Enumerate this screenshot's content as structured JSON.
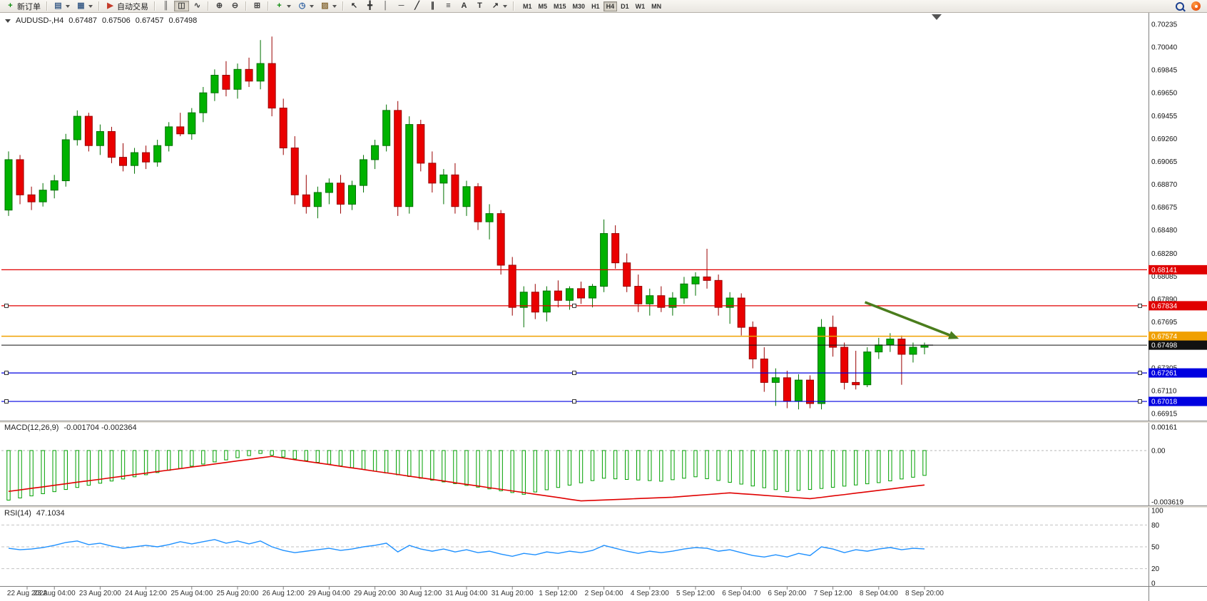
{
  "toolbar": {
    "new_order_label": "新订单",
    "autotrading_label": "自动交易",
    "timeframes": [
      "M1",
      "M5",
      "M15",
      "M30",
      "H1",
      "H4",
      "D1",
      "W1",
      "MN"
    ],
    "active_timeframe": "H4",
    "icons": {
      "new-order-icon": {
        "glyph": "+",
        "color": "#0a8a0a"
      },
      "new-chart-icon": {
        "glyph": "▤",
        "color": "#41628b"
      },
      "profiles-icon": {
        "glyph": "▦",
        "color": "#41628b"
      },
      "autotrading-icon": {
        "glyph": "▶",
        "color": "#c43b2a"
      },
      "bars-chart-icon": {
        "glyph": "║",
        "color": "#444444"
      },
      "candles-chart-icon": {
        "glyph": "◫",
        "color": "#444444"
      },
      "line-chart-icon": {
        "glyph": "∿",
        "color": "#444444"
      },
      "zoom-in-icon": {
        "glyph": "⊕",
        "color": "#444444"
      },
      "zoom-out-icon": {
        "glyph": "⊖",
        "color": "#444444"
      },
      "tile-windows-icon": {
        "glyph": "⊞",
        "color": "#444444"
      },
      "indicators-icon": {
        "glyph": "+",
        "color": "#0a8a0a"
      },
      "periods-icon": {
        "glyph": "◷",
        "color": "#2a5d9f"
      },
      "templates-icon": {
        "glyph": "▨",
        "color": "#8a6d3b"
      },
      "cursor-icon": {
        "glyph": "↖",
        "color": "#333333"
      },
      "crosshair-icon": {
        "glyph": "╋",
        "color": "#333333"
      },
      "vertical-line-icon": {
        "glyph": "│",
        "color": "#333333"
      },
      "horizontal-line-icon": {
        "glyph": "─",
        "color": "#333333"
      },
      "trendline-icon": {
        "glyph": "╱",
        "color": "#333333"
      },
      "channel-icon": {
        "glyph": "∥",
        "color": "#333333"
      },
      "fibonacci-icon": {
        "glyph": "≡",
        "color": "#333333"
      },
      "text-icon": {
        "glyph": "A",
        "color": "#333333"
      },
      "label-icon": {
        "glyph": "T",
        "color": "#333333"
      },
      "arrows-icon": {
        "glyph": "↗",
        "color": "#333333"
      }
    }
  },
  "chart_data": {
    "type": "candlestick",
    "symbol_title": "AUDUSD-,H4",
    "symbol": "AUDUSD-",
    "period": "H4",
    "current_bar": {
      "open": "0.67487",
      "high": "0.67506",
      "low": "0.67457",
      "close": "0.67498"
    },
    "price_axis": {
      "max_price": 0.70235,
      "min_price": 0.66915,
      "tick_labels": [
        "0.70235",
        "0.70040",
        "0.69845",
        "0.69650",
        "0.69455",
        "0.69260",
        "0.69065",
        "0.68870",
        "0.68675",
        "0.68480",
        "0.68280",
        "0.68085",
        "0.67890",
        "0.67695",
        "0.67305",
        "0.67110",
        "0.66915"
      ]
    },
    "time_labels": [
      "22 Aug 2022",
      "23 Aug 04:00",
      "23 Aug 20:00",
      "24 Aug 12:00",
      "25 Aug 04:00",
      "25 Aug 20:00",
      "26 Aug 12:00",
      "29 Aug 04:00",
      "29 Aug 20:00",
      "30 Aug 12:00",
      "31 Aug 04:00",
      "31 Aug 20:00",
      "1 Sep 12:00",
      "2 Sep 04:00",
      "4 Sep 23:00",
      "5 Sep 12:00",
      "6 Sep 04:00",
      "6 Sep 20:00",
      "7 Sep 12:00",
      "8 Sep 04:00",
      "8 Sep 20:00"
    ],
    "candles_per_label": 4,
    "colors": {
      "bull_fill": "#00B200",
      "bull_border": "#007000",
      "bear_fill": "#EA0000",
      "bear_border": "#990000"
    },
    "candles": [
      [
        0.6865,
        0.6915,
        0.686,
        0.6908
      ],
      [
        0.6908,
        0.6912,
        0.687,
        0.6878
      ],
      [
        0.6878,
        0.6885,
        0.6865,
        0.6872
      ],
      [
        0.6872,
        0.6888,
        0.6868,
        0.6882
      ],
      [
        0.6882,
        0.6895,
        0.6875,
        0.689
      ],
      [
        0.689,
        0.693,
        0.6885,
        0.6925
      ],
      [
        0.6925,
        0.695,
        0.692,
        0.6945
      ],
      [
        0.6945,
        0.6948,
        0.6915,
        0.692
      ],
      [
        0.692,
        0.6938,
        0.6912,
        0.6932
      ],
      [
        0.6932,
        0.6936,
        0.6905,
        0.691
      ],
      [
        0.691,
        0.6922,
        0.6898,
        0.6903
      ],
      [
        0.6903,
        0.6918,
        0.6896,
        0.6914
      ],
      [
        0.6914,
        0.692,
        0.69,
        0.6906
      ],
      [
        0.6906,
        0.6925,
        0.6902,
        0.692
      ],
      [
        0.692,
        0.694,
        0.6915,
        0.6936
      ],
      [
        0.6936,
        0.6948,
        0.6928,
        0.693
      ],
      [
        0.693,
        0.6952,
        0.6925,
        0.6948
      ],
      [
        0.6948,
        0.697,
        0.694,
        0.6965
      ],
      [
        0.6965,
        0.6985,
        0.6958,
        0.698
      ],
      [
        0.698,
        0.6992,
        0.6962,
        0.6968
      ],
      [
        0.6968,
        0.699,
        0.696,
        0.6985
      ],
      [
        0.6985,
        0.6995,
        0.697,
        0.6975
      ],
      [
        0.6975,
        0.701,
        0.6968,
        0.699
      ],
      [
        0.699,
        0.7013,
        0.6945,
        0.6952
      ],
      [
        0.6952,
        0.696,
        0.6912,
        0.6918
      ],
      [
        0.6918,
        0.6928,
        0.687,
        0.6878
      ],
      [
        0.6878,
        0.6895,
        0.6862,
        0.6868
      ],
      [
        0.6868,
        0.6885,
        0.6858,
        0.688
      ],
      [
        0.688,
        0.6892,
        0.687,
        0.6888
      ],
      [
        0.6888,
        0.6895,
        0.6862,
        0.687
      ],
      [
        0.687,
        0.689,
        0.6865,
        0.6886
      ],
      [
        0.6886,
        0.6912,
        0.688,
        0.6908
      ],
      [
        0.6908,
        0.6925,
        0.69,
        0.692
      ],
      [
        0.692,
        0.6955,
        0.6915,
        0.695
      ],
      [
        0.695,
        0.6958,
        0.686,
        0.6868
      ],
      [
        0.6868,
        0.6945,
        0.6862,
        0.6938
      ],
      [
        0.6938,
        0.6942,
        0.6898,
        0.6905
      ],
      [
        0.6905,
        0.6915,
        0.688,
        0.6888
      ],
      [
        0.6888,
        0.69,
        0.687,
        0.6895
      ],
      [
        0.6895,
        0.6905,
        0.6862,
        0.6868
      ],
      [
        0.6868,
        0.689,
        0.686,
        0.6885
      ],
      [
        0.6885,
        0.6888,
        0.6848,
        0.6855
      ],
      [
        0.6855,
        0.687,
        0.684,
        0.6862
      ],
      [
        0.6862,
        0.6865,
        0.681,
        0.6818
      ],
      [
        0.6818,
        0.6825,
        0.6775,
        0.6782
      ],
      [
        0.6782,
        0.68,
        0.6765,
        0.6795
      ],
      [
        0.6795,
        0.6802,
        0.6772,
        0.6778
      ],
      [
        0.6778,
        0.68,
        0.677,
        0.6796
      ],
      [
        0.6796,
        0.6805,
        0.6782,
        0.6788
      ],
      [
        0.6788,
        0.68,
        0.678,
        0.6798
      ],
      [
        0.6798,
        0.6804,
        0.6785,
        0.679
      ],
      [
        0.679,
        0.6802,
        0.6782,
        0.68
      ],
      [
        0.68,
        0.6857,
        0.6795,
        0.6845
      ],
      [
        0.6845,
        0.6852,
        0.6815,
        0.682
      ],
      [
        0.682,
        0.6828,
        0.6795,
        0.68
      ],
      [
        0.68,
        0.681,
        0.6778,
        0.6785
      ],
      [
        0.6785,
        0.6798,
        0.6775,
        0.6792
      ],
      [
        0.6792,
        0.68,
        0.6778,
        0.6782
      ],
      [
        0.6782,
        0.6795,
        0.6775,
        0.679
      ],
      [
        0.679,
        0.6808,
        0.6785,
        0.6802
      ],
      [
        0.6802,
        0.6812,
        0.6792,
        0.6808
      ],
      [
        0.6808,
        0.6832,
        0.6798,
        0.6805
      ],
      [
        0.6805,
        0.681,
        0.6775,
        0.6782
      ],
      [
        0.6782,
        0.6795,
        0.6768,
        0.679
      ],
      [
        0.679,
        0.6794,
        0.6758,
        0.6765
      ],
      [
        0.6765,
        0.677,
        0.673,
        0.6738
      ],
      [
        0.6738,
        0.6748,
        0.671,
        0.6718
      ],
      [
        0.6718,
        0.673,
        0.6698,
        0.6722
      ],
      [
        0.6722,
        0.6728,
        0.6696,
        0.6702
      ],
      [
        0.6702,
        0.6725,
        0.6695,
        0.672
      ],
      [
        0.672,
        0.6724,
        0.6696,
        0.67
      ],
      [
        0.67,
        0.6772,
        0.6695,
        0.6765
      ],
      [
        0.6765,
        0.6775,
        0.674,
        0.6748
      ],
      [
        0.6748,
        0.6752,
        0.6712,
        0.6718
      ],
      [
        0.6718,
        0.6745,
        0.6712,
        0.6716
      ],
      [
        0.6716,
        0.6748,
        0.6714,
        0.6744
      ],
      [
        0.6744,
        0.6756,
        0.6738,
        0.675
      ],
      [
        0.675,
        0.676,
        0.6744,
        0.6755
      ],
      [
        0.6755,
        0.6758,
        0.6716,
        0.6742
      ],
      [
        0.6742,
        0.6752,
        0.6735,
        0.6748
      ],
      [
        0.6748,
        0.6752,
        0.6742,
        0.67498
      ]
    ],
    "levels": [
      {
        "price": 0.68141,
        "label": "0.68141",
        "color": "#E00000",
        "handles": false,
        "width": 1.2
      },
      {
        "price": 0.67834,
        "label": "0.67834",
        "color": "#E00000",
        "handles": true,
        "width": 1.2
      },
      {
        "price": 0.67574,
        "label": "0.67574",
        "color": "#F0A000",
        "handles": false,
        "width": 1.6
      },
      {
        "price": 0.67498,
        "label": "0.67498",
        "color": "#111111",
        "handles": false,
        "width": 1
      },
      {
        "price": 0.67261,
        "label": "0.67261",
        "color": "#0000E0",
        "handles": true,
        "width": 1.2
      },
      {
        "price": 0.67018,
        "label": "0.67018",
        "color": "#0000E0",
        "handles": true,
        "width": 1.2
      }
    ],
    "arrow_annotation": {
      "from": {
        "candle": 74.8,
        "price": 0.67864
      },
      "to": {
        "candle": 83,
        "price": 0.67553
      },
      "color": "#4a7d1c"
    },
    "macd": {
      "label": "MACD(12,26,9)",
      "values_label": "-0.001704 -0.002364",
      "axis_labels": [
        "0.00161",
        "0.00",
        "-0.003619"
      ],
      "range": {
        "max": 0.00161,
        "min": -0.003619
      },
      "histogram_color": "#00A000",
      "signal_color": "#E00000",
      "histogram": [
        -0.0034,
        -0.00325,
        -0.00311,
        -0.00296,
        -0.00282,
        -0.00267,
        -0.00253,
        -0.00238,
        -0.00224,
        -0.00209,
        -0.00195,
        -0.0018,
        -0.00166,
        -0.00151,
        -0.00136,
        -0.00122,
        -0.00107,
        -0.00093,
        -0.00078,
        -0.00064,
        -0.00049,
        -0.00035,
        -0.0002,
        -0.00032,
        -0.00044,
        -0.00057,
        -0.00069,
        -0.00081,
        -0.00093,
        -0.00105,
        -0.00117,
        -0.0013,
        -0.00142,
        -0.00154,
        -0.00166,
        -0.00178,
        -0.0019,
        -0.00203,
        -0.00215,
        -0.00227,
        -0.00239,
        -0.00251,
        -0.00263,
        -0.00276,
        -0.00288,
        -0.003,
        -0.00284,
        -0.00269,
        -0.00253,
        -0.00237,
        -0.00221,
        -0.00206,
        -0.0019,
        -0.00194,
        -0.00198,
        -0.00202,
        -0.00206,
        -0.0021,
        -0.002,
        -0.0019,
        -0.0018,
        -0.00193,
        -0.00205,
        -0.00218,
        -0.0023,
        -0.00243,
        -0.00255,
        -0.00268,
        -0.0028,
        -0.00273,
        -0.00267,
        -0.0026,
        -0.00252,
        -0.00244,
        -0.00236,
        -0.00228,
        -0.0022,
        -0.00208,
        -0.00195,
        -0.00183,
        -0.001704
      ],
      "signal": [
        -0.0028,
        -0.0027,
        -0.00259,
        -0.00249,
        -0.00238,
        -0.00228,
        -0.00217,
        -0.00207,
        -0.00197,
        -0.00186,
        -0.00176,
        -0.00165,
        -0.00155,
        -0.00144,
        -0.00134,
        -0.00124,
        -0.00113,
        -0.00103,
        -0.00092,
        -0.00082,
        -0.00071,
        -0.00061,
        -0.0005,
        -0.0004,
        -0.00051,
        -0.00063,
        -0.00074,
        -0.00085,
        -0.00096,
        -0.00108,
        -0.00119,
        -0.0013,
        -0.00142,
        -0.00153,
        -0.00164,
        -0.00176,
        -0.00187,
        -0.00198,
        -0.00209,
        -0.00221,
        -0.00232,
        -0.00243,
        -0.00255,
        -0.00266,
        -0.00277,
        -0.00288,
        -0.003,
        -0.00311,
        -0.00322,
        -0.00334,
        -0.00345,
        -0.00342,
        -0.00339,
        -0.00336,
        -0.00333,
        -0.00329,
        -0.00326,
        -0.00323,
        -0.0032,
        -0.00314,
        -0.00308,
        -0.00302,
        -0.00296,
        -0.0029,
        -0.00296,
        -0.00301,
        -0.00307,
        -0.00313,
        -0.00319,
        -0.00324,
        -0.0033,
        -0.00321,
        -0.00311,
        -0.00302,
        -0.00292,
        -0.00283,
        -0.00273,
        -0.00264,
        -0.00254,
        -0.00245,
        -0.002364
      ]
    },
    "rsi": {
      "label": "RSI(14)",
      "value_label": "47.1034",
      "levels": [
        100,
        80,
        50,
        20,
        0
      ],
      "range": {
        "min": 0,
        "max": 100
      },
      "color": "#1E90FF",
      "values": [
        48,
        46,
        47,
        49,
        52,
        56,
        58,
        53,
        55,
        51,
        48,
        50,
        52,
        50,
        53,
        57,
        54,
        57,
        60,
        55,
        58,
        54,
        58,
        50,
        45,
        42,
        44,
        46,
        48,
        45,
        47,
        50,
        52,
        55,
        43,
        52,
        47,
        44,
        47,
        43,
        46,
        42,
        44,
        40,
        37,
        41,
        39,
        43,
        41,
        44,
        42,
        45,
        52,
        48,
        44,
        41,
        44,
        42,
        44,
        47,
        49,
        48,
        44,
        46,
        42,
        38,
        36,
        39,
        36,
        41,
        38,
        50,
        47,
        42,
        46,
        44,
        47,
        49,
        46,
        48,
        47.1
      ]
    }
  }
}
